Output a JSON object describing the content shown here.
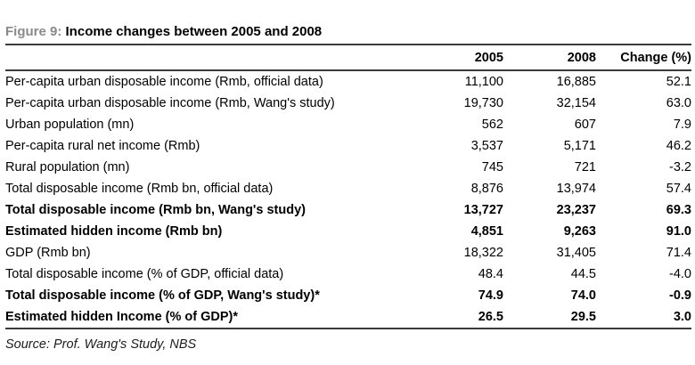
{
  "figure": {
    "label": "Figure 9:",
    "title": "Income changes between 2005 and 2008"
  },
  "table": {
    "columns": [
      "",
      "2005",
      "2008",
      "Change (%)"
    ],
    "rows": [
      {
        "label": "Per-capita urban disposable income (Rmb, official data)",
        "y2005": "11,100",
        "y2008": "16,885",
        "change": "52.1",
        "bold": false
      },
      {
        "label": "Per-capita urban disposable income (Rmb, Wang's study)",
        "y2005": "19,730",
        "y2008": "32,154",
        "change": "63.0",
        "bold": false
      },
      {
        "label": "Urban population (mn)",
        "y2005": "562",
        "y2008": "607",
        "change": "7.9",
        "bold": false
      },
      {
        "label": "Per-capita rural net income (Rmb)",
        "y2005": "3,537",
        "y2008": "5,171",
        "change": "46.2",
        "bold": false
      },
      {
        "label": "Rural population (mn)",
        "y2005": "745",
        "y2008": "721",
        "change": "-3.2",
        "bold": false
      },
      {
        "label": "Total disposable income (Rmb bn, official data)",
        "y2005": "8,876",
        "y2008": "13,974",
        "change": "57.4",
        "bold": false
      },
      {
        "label": "Total disposable income (Rmb bn, Wang's study)",
        "y2005": "13,727",
        "y2008": "23,237",
        "change": "69.3",
        "bold": true
      },
      {
        "label": "Estimated hidden income (Rmb bn)",
        "y2005": "4,851",
        "y2008": "9,263",
        "change": "91.0",
        "bold": true
      },
      {
        "label": "GDP (Rmb bn)",
        "y2005": "18,322",
        "y2008": "31,405",
        "change": "71.4",
        "bold": false
      },
      {
        "label": "Total disposable income (% of GDP, official data)",
        "y2005": "48.4",
        "y2008": "44.5",
        "change": "-4.0",
        "bold": false
      },
      {
        "label": "Total disposable income (% of GDP, Wang's study)*",
        "y2005": "74.9",
        "y2008": "74.0",
        "change": "-0.9",
        "bold": true
      },
      {
        "label": "Estimated hidden Income (% of GDP)*",
        "y2005": "26.5",
        "y2008": "29.5",
        "change": "3.0",
        "bold": true
      }
    ]
  },
  "source": "Source: Prof. Wang's Study, NBS",
  "colors": {
    "figure_label": "#8a8a8a",
    "text": "#000000",
    "rule": "#3c3c3c"
  }
}
